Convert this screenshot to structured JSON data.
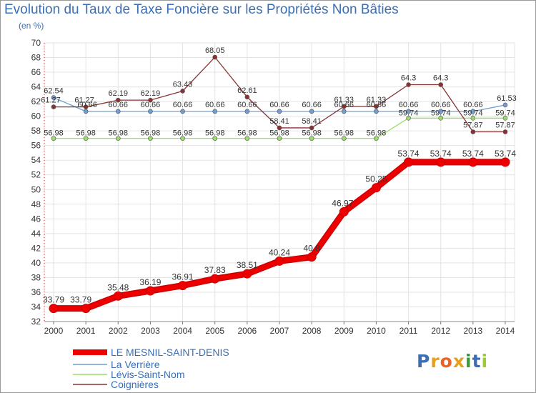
{
  "chart_data": {
    "type": "line",
    "title": "Evolution du Taux de Taxe Foncière sur les Propriétés Non Bâties",
    "unit_label": "(en %)",
    "categories": [
      "2000",
      "2001",
      "2002",
      "2003",
      "2004",
      "2005",
      "2006",
      "2007",
      "2008",
      "2009",
      "2010",
      "2011",
      "2012",
      "2013",
      "2014"
    ],
    "ylim": [
      32,
      70
    ],
    "y_ticks": [
      32,
      34,
      36,
      38,
      40,
      42,
      44,
      46,
      48,
      50,
      52,
      54,
      56,
      58,
      60,
      62,
      64,
      66,
      68,
      70
    ],
    "grid": true,
    "series": [
      {
        "name": "LE MESNIL-SAINT-DENIS",
        "color": "#ee0000",
        "values": [
          33.79,
          33.79,
          35.48,
          36.19,
          36.91,
          37.83,
          38.51,
          40.24,
          40.8,
          46.97,
          50.25,
          53.74,
          53.74,
          53.74,
          53.74
        ],
        "labels": [
          "33.79",
          "33.79",
          "35.48",
          "36.19",
          "36.91",
          "37.83",
          "38.51",
          "40.24",
          "40.8",
          "46.97",
          "50.25",
          "53.74",
          "53.74",
          "53.74",
          "53.74"
        ]
      },
      {
        "name": "La Verrière",
        "color": "#6f9fd0",
        "values": [
          62.54,
          60.66,
          60.66,
          60.66,
          60.66,
          60.66,
          60.66,
          60.66,
          60.66,
          60.66,
          60.66,
          60.66,
          60.66,
          60.66,
          61.53
        ],
        "labels": [
          "62.54",
          "60.66",
          "60.66",
          "60.66",
          "60.66",
          "60.66",
          "60.66",
          "60.66",
          "60.66",
          "60.66",
          "60.66",
          "60.66",
          "60.66",
          "60.66",
          "61.53"
        ]
      },
      {
        "name": "Lévis-Saint-Nom",
        "color": "#99dd66",
        "values": [
          56.98,
          56.98,
          56.98,
          56.98,
          56.98,
          56.98,
          56.98,
          56.98,
          56.98,
          56.98,
          56.98,
          59.74,
          59.74,
          59.74,
          59.74
        ],
        "labels": [
          "56.98",
          "56.98",
          "56.98",
          "56.98",
          "56.98",
          "56.98",
          "56.98",
          "56.98",
          "56.98",
          "56.98",
          "56.98",
          "59.74",
          "59.74",
          "59.74",
          "59.74"
        ]
      },
      {
        "name": "Coignières",
        "color": "#883333",
        "values": [
          61.27,
          61.27,
          62.19,
          62.19,
          63.43,
          68.05,
          62.61,
          58.41,
          58.41,
          61.33,
          61.33,
          64.3,
          64.3,
          57.87,
          57.87
        ],
        "labels": [
          "61.27",
          "61.27",
          "62.19",
          "62.19",
          "63.43",
          "68.05",
          "62.61",
          "58.41",
          "58.41",
          "61.33",
          "61.33",
          "64.3",
          "64.3",
          "57.87",
          "57.87"
        ]
      }
    ]
  },
  "logo": {
    "text": "Proxiti",
    "colors": [
      "#3a6fb5",
      "#e6a020",
      "#f06020",
      "#e6a020",
      "#3a9a3a",
      "#3a6fb5",
      "#99cc33"
    ]
  }
}
